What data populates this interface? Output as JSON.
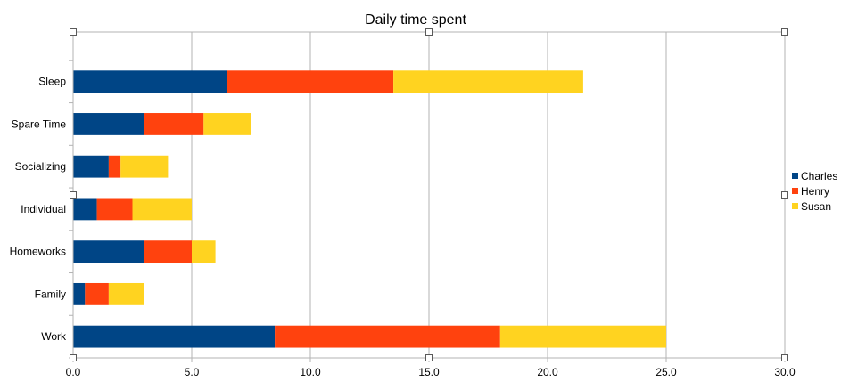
{
  "chart_data": {
    "type": "bar",
    "orientation": "horizontal",
    "stacked": true,
    "title": "Daily time spent",
    "xlabel": "",
    "ylabel": "",
    "xlim": [
      0,
      30
    ],
    "x_ticks": [
      0,
      5,
      10,
      15,
      20,
      25,
      30
    ],
    "x_tick_labels": [
      "0.0",
      "5.0",
      "10.0",
      "15.0",
      "20.0",
      "25.0",
      "30.0"
    ],
    "grid": true,
    "legend_position": "right",
    "categories": [
      "Sleep",
      "Spare Time",
      "Socializing",
      "Individual",
      "Homeworks",
      "Family",
      "Work"
    ],
    "series": [
      {
        "name": "Charles",
        "color": "#004586",
        "values": [
          6.5,
          3,
          1.5,
          1,
          3,
          0.5,
          8.5
        ]
      },
      {
        "name": "Henry",
        "color": "#ff420e",
        "values": [
          7,
          2.5,
          0.5,
          1.5,
          2,
          1,
          9.5
        ]
      },
      {
        "name": "Susan",
        "color": "#ffd320",
        "values": [
          8,
          2,
          2,
          2.5,
          1,
          1.5,
          7
        ]
      }
    ]
  }
}
